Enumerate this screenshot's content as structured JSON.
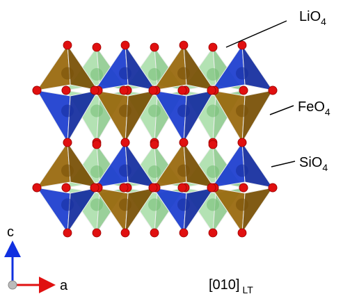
{
  "labels": [
    {
      "text": "LiO",
      "sub": "4"
    },
    {
      "text": "FeO",
      "sub": "4"
    },
    {
      "text": "SiO",
      "sub": "4"
    }
  ],
  "axes": {
    "up": "c",
    "right": "a"
  },
  "view": {
    "text": "[010]",
    "sub": "LT"
  }
}
